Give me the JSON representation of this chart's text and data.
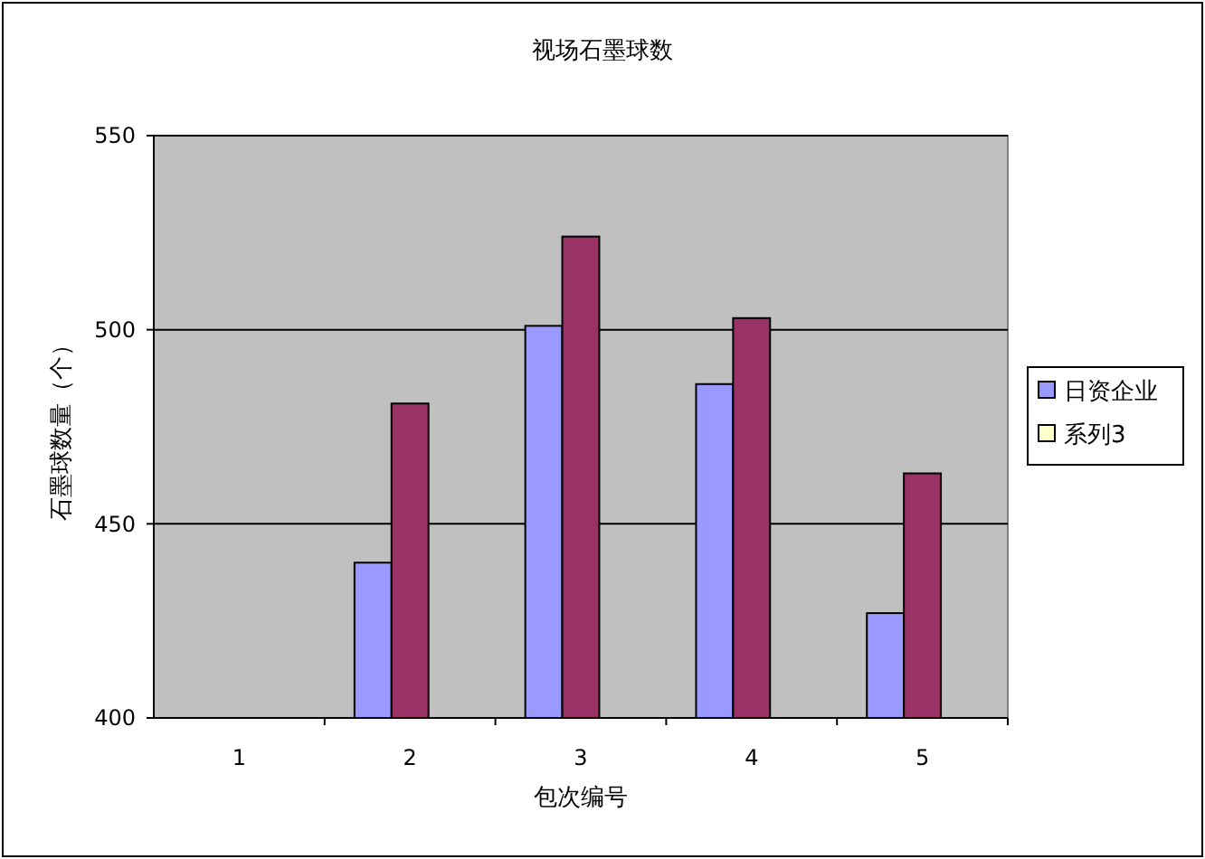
{
  "chart_data": {
    "type": "bar",
    "title": "视场石墨球数",
    "xlabel": "包次编号",
    "ylabel": "石墨球数量（个）",
    "categories": [
      "1",
      "2",
      "3",
      "4",
      "5"
    ],
    "series": [
      {
        "name": "日资企业",
        "color": "#9999ff",
        "values": [
          null,
          440,
          501,
          486,
          427
        ]
      },
      {
        "color": "#993366",
        "values": [
          null,
          481,
          524,
          503,
          463
        ]
      },
      {
        "name": "系列3",
        "color": "#ffffcc",
        "values": [
          null,
          null,
          null,
          null,
          null
        ]
      }
    ],
    "ylim": [
      400,
      550
    ],
    "yticks": [
      400,
      450,
      500,
      550
    ],
    "grid": "y",
    "legend": "right"
  }
}
